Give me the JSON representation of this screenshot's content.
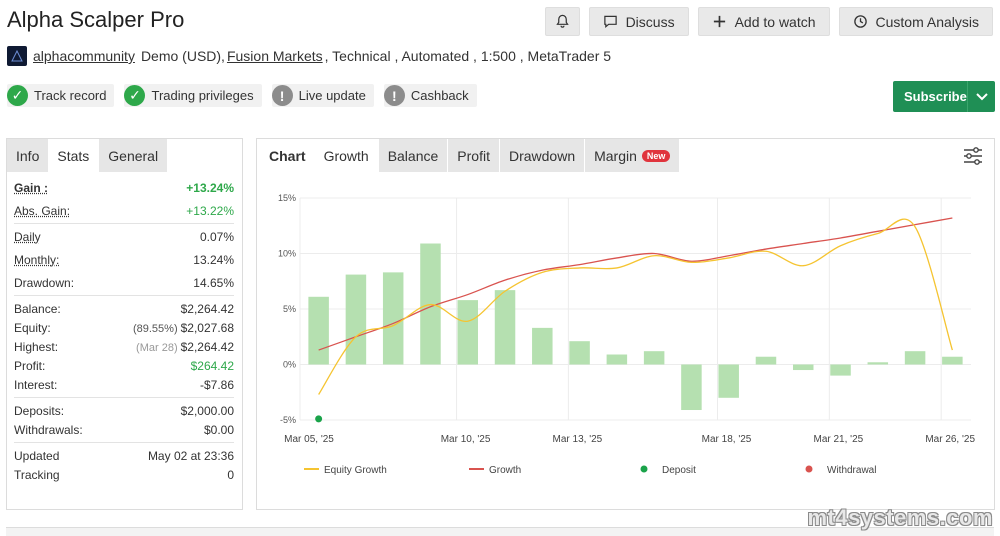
{
  "header": {
    "title": "Alpha Scalper Pro",
    "buttons": {
      "discuss": "Discuss",
      "watch": "Add to watch",
      "analysis": "Custom Analysis"
    }
  },
  "subline": {
    "author": "alphacommunity",
    "account": "Demo (USD),",
    "broker": "Fusion Markets",
    "rest": ", Technical , Automated , 1:500 , MetaTrader 5"
  },
  "badges": [
    {
      "label": "Track record",
      "status": "ok"
    },
    {
      "label": "Trading privileges",
      "status": "ok"
    },
    {
      "label": "Live update",
      "status": "warn"
    },
    {
      "label": "Cashback",
      "status": "warn"
    }
  ],
  "subscribe": {
    "label": "Subscribe"
  },
  "left_tabs": [
    "Info",
    "Stats",
    "General"
  ],
  "stats": {
    "gain": {
      "label": "Gain :",
      "value": "+13.24%"
    },
    "abs_gain": {
      "label": "Abs. Gain:",
      "value": "+13.22%"
    },
    "daily": {
      "label": "Daily",
      "value": "0.07%"
    },
    "monthly": {
      "label": "Monthly:",
      "value": "13.24%"
    },
    "drawdown": {
      "label": "Drawdown:",
      "value": "14.65%"
    },
    "balance": {
      "label": "Balance:",
      "value": "$2,264.42"
    },
    "equity": {
      "label": "Equity:",
      "note": "(89.55%)",
      "value": "$2,027.68"
    },
    "highest": {
      "label": "Highest:",
      "note": "(Mar 28)",
      "value": "$2,264.42"
    },
    "profit": {
      "label": "Profit:",
      "value": "$264.42"
    },
    "interest": {
      "label": "Interest:",
      "value": "-$7.86"
    },
    "deposits": {
      "label": "Deposits:",
      "value": "$2,000.00"
    },
    "withdrawals": {
      "label": "Withdrawals:",
      "value": "$0.00"
    },
    "updated": {
      "label": "Updated",
      "value": "May 02 at 23:36"
    },
    "tracking": {
      "label": "Tracking",
      "value": "0"
    }
  },
  "chart_tabs": [
    "Chart",
    "Growth",
    "Balance",
    "Profit",
    "Drawdown",
    "Margin"
  ],
  "new_tag": "New",
  "watermark": "mt4systems.com",
  "colors": {
    "equity": "#f5c431",
    "growth": "#d9534f",
    "deposit": "#1aa34a",
    "withdrawal": "#d9534f",
    "bar": "#b5e0b0",
    "accent": "#1f8f55"
  },
  "chart_data": {
    "type": "bar",
    "ylim": [
      -5,
      15
    ],
    "yticks": [
      "15%",
      "10%",
      "5%",
      "0%",
      "-5%"
    ],
    "ytick_values": [
      15,
      10,
      5,
      0,
      -5
    ],
    "xticks": [
      "Mar 05, '25",
      "Mar 10, '25",
      "Mar 13, '25",
      "Mar 18, '25",
      "Mar 21, '25",
      "Mar 26, '25"
    ],
    "bars": [
      6.1,
      8.1,
      8.3,
      10.9,
      5.8,
      6.7,
      3.3,
      2.1,
      0.9,
      1.2,
      -4.1,
      -3.0,
      0.7,
      -0.5,
      -1.0,
      0.2,
      1.2,
      0.7
    ],
    "growth": [
      1.3,
      2.5,
      3.7,
      5.2,
      6.3,
      7.6,
      8.5,
      9.0,
      9.6,
      10.0,
      9.3,
      9.8,
      10.4,
      10.9,
      11.4,
      12.0,
      12.6,
      13.2
    ],
    "equity": [
      -2.7,
      2.5,
      3.5,
      5.4,
      3.9,
      6.6,
      8.3,
      8.7,
      8.7,
      9.8,
      9.2,
      9.6,
      10.2,
      8.9,
      10.7,
      11.8,
      12.4,
      1.3
    ],
    "deposit_points": [
      {
        "index": 0,
        "value": -4.9
      }
    ],
    "legend": [
      "Equity Growth",
      "Growth",
      "Deposit",
      "Withdrawal"
    ]
  }
}
